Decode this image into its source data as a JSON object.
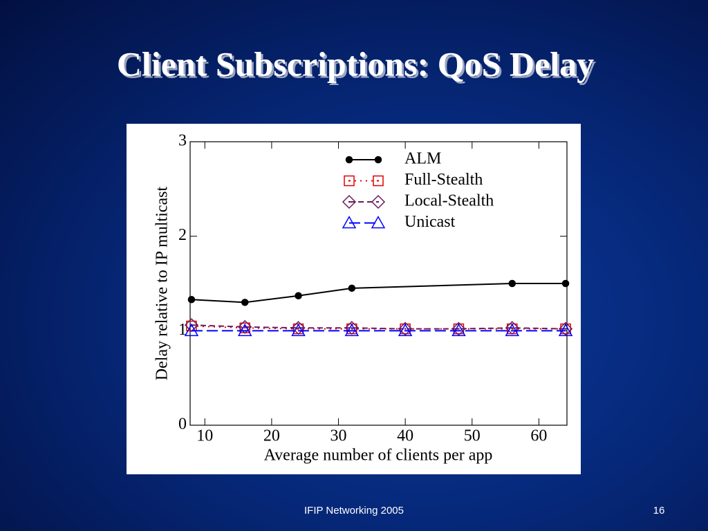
{
  "slide": {
    "title": "Client Subscriptions: QoS Delay",
    "footer": "IFIP Networking 2005",
    "page_number": "16"
  },
  "chart_data": {
    "type": "line",
    "xlabel": "Average number of clients per app",
    "ylabel": "Delay relative to IP multicast",
    "x": [
      8,
      16,
      24,
      32,
      40,
      48,
      56,
      64
    ],
    "xlim": [
      7.8,
      64.2
    ],
    "xticks": [
      10,
      20,
      30,
      40,
      50,
      60
    ],
    "ylim": [
      0,
      3
    ],
    "yticks": [
      0,
      1,
      2,
      3
    ],
    "grid": false,
    "legend": "upper right",
    "series": [
      {
        "name": "ALM",
        "color": "#000000",
        "dash": "solid",
        "marker": "circle",
        "x": [
          8,
          16,
          24,
          32,
          56,
          64
        ],
        "values": [
          1.33,
          1.3,
          1.37,
          1.45,
          1.5,
          1.5
        ]
      },
      {
        "name": "Full-Stealth",
        "color": "#e00000",
        "dash": "dotted",
        "marker": "square",
        "values": [
          1.05,
          1.03,
          1.02,
          1.02,
          1.02,
          1.02,
          1.02,
          1.02
        ]
      },
      {
        "name": "Local-Stealth",
        "color": "#6b1a5e",
        "dash": "dashed",
        "marker": "diamond",
        "values": [
          1.06,
          1.04,
          1.03,
          1.03,
          1.02,
          1.02,
          1.03,
          1.02
        ]
      },
      {
        "name": "Unicast",
        "color": "#0000ff",
        "dash": "longdash",
        "marker": "triangle",
        "values": [
          1,
          1,
          1,
          1,
          1,
          1,
          1,
          1
        ]
      }
    ]
  }
}
